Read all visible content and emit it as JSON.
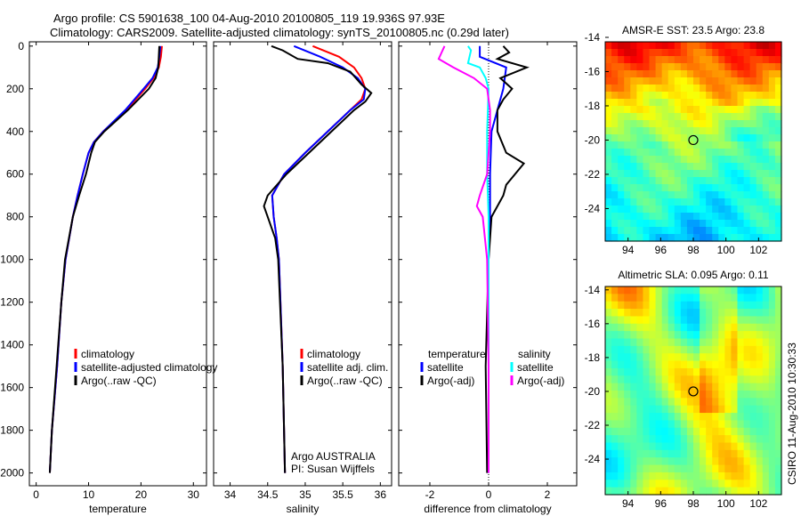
{
  "title": {
    "line1": "Argo profile: CS 5901638_100 04-Aug-2010 20100805_119 19.936S 97.93E",
    "line2": "Climatology: CARS2009. Satellite-adjusted climatology: synTS_20100805.nc (0.29d later)"
  },
  "side_label": "CSIRO 11-Aug-2010 10:30:33",
  "chart_data": [
    {
      "type": "line",
      "xlabel": "temperature",
      "ylabel": "",
      "xlim": [
        -1.3,
        32.5
      ],
      "ylim": [
        -20,
        2060
      ],
      "y_reversed": true,
      "xticks": [
        0,
        10,
        20,
        30
      ],
      "yticks": [
        0,
        200,
        400,
        600,
        800,
        1000,
        1200,
        1400,
        1600,
        1800,
        2000
      ],
      "legend": [
        "climatology",
        "satellite-adjusted climatology",
        "Argo(..raw -QC)"
      ],
      "series": [
        {
          "name": "climatology",
          "color": "#ff0000",
          "depth": [
            0,
            50,
            100,
            150,
            200,
            300,
            400,
            450,
            500,
            600,
            700,
            800,
            1000,
            1200,
            1500,
            1800,
            2000
          ],
          "values": [
            24,
            23.8,
            23.4,
            22.4,
            20.8,
            17.2,
            12.8,
            11,
            10,
            8.9,
            7.9,
            7,
            5.6,
            4.8,
            4,
            3,
            2.6
          ]
        },
        {
          "name": "satellite-adjusted climatology",
          "color": "#0000ff",
          "depth": [
            0,
            50,
            100,
            150,
            200,
            300,
            400,
            450,
            500,
            600,
            700,
            800,
            1000,
            1200,
            1500,
            1800,
            2000
          ],
          "values": [
            23.7,
            23.5,
            23.2,
            22.2,
            20.5,
            17,
            12.8,
            11,
            10,
            8.9,
            7.9,
            7,
            5.6,
            4.8,
            4,
            3,
            2.6
          ]
        },
        {
          "name": "Argo(..raw -QC)",
          "color": "#000000",
          "depth": [
            0,
            50,
            100,
            150,
            200,
            300,
            400,
            450,
            500,
            600,
            700,
            800,
            1000,
            1200,
            1500,
            1800,
            2000
          ],
          "values": [
            23.5,
            23.4,
            23.3,
            22.8,
            21.5,
            17.5,
            13,
            11.2,
            10.5,
            9.5,
            8.2,
            7,
            5.5,
            4.8,
            3.9,
            3,
            2.6
          ]
        }
      ]
    },
    {
      "type": "line",
      "xlabel": "salinity",
      "ylabel": "",
      "xlim": [
        33.78,
        36.15
      ],
      "ylim": [
        -20,
        2060
      ],
      "y_reversed": true,
      "xticks": [
        34,
        34.5,
        35,
        35.5,
        36
      ],
      "legend": [
        "climatology",
        "satellite adj. clim.",
        "Argo(..raw -QC)"
      ],
      "annotation": [
        "Argo AUSTRALIA",
        "PI: Susan Wijffels"
      ],
      "series": [
        {
          "name": "climatology",
          "color": "#ff0000",
          "depth": [
            0,
            50,
            100,
            150,
            200,
            250,
            300,
            400,
            500,
            600,
            700,
            800,
            900,
            1000,
            1500,
            2000
          ],
          "values": [
            35.1,
            35.45,
            35.65,
            35.75,
            35.8,
            35.75,
            35.6,
            35.3,
            35.0,
            34.72,
            34.56,
            34.58,
            34.62,
            34.65,
            34.7,
            34.73
          ]
        },
        {
          "name": "satellite adj. clim.",
          "color": "#0000ff",
          "depth": [
            0,
            50,
            100,
            150,
            200,
            250,
            300,
            400,
            500,
            600,
            700,
            800,
            900,
            1000,
            1500,
            2000
          ],
          "values": [
            34.85,
            35.2,
            35.5,
            35.7,
            35.8,
            35.78,
            35.6,
            35.3,
            35.0,
            34.72,
            34.56,
            34.58,
            34.62,
            34.65,
            34.7,
            34.73
          ]
        },
        {
          "name": "Argo(..raw -QC)",
          "color": "#000000",
          "depth": [
            0,
            20,
            60,
            80,
            120,
            180,
            220,
            260,
            300,
            400,
            500,
            600,
            700,
            750,
            800,
            900,
            1000,
            1500,
            2000
          ],
          "values": [
            34.55,
            34.7,
            34.9,
            35.3,
            35.6,
            35.75,
            35.88,
            35.8,
            35.65,
            35.35,
            35.05,
            34.75,
            34.5,
            34.45,
            34.5,
            34.6,
            34.64,
            34.7,
            34.73
          ]
        }
      ]
    },
    {
      "type": "line",
      "xlabel": "difference from climatology",
      "ylabel": "",
      "xlim": [
        -3.06,
        3.0
      ],
      "ylim": [
        -20,
        2060
      ],
      "y_reversed": true,
      "xticks": [
        -2,
        0,
        2
      ],
      "legend": {
        "temperature_header": "temperature",
        "salinity_header": "salinity",
        "items": [
          "satellite",
          "Argo(-adj)",
          "satellite",
          "Argo(-adj)"
        ]
      },
      "series": [
        {
          "name": "temperature satellite",
          "color": "#0000ff",
          "depth": [
            0,
            50,
            100,
            200,
            300,
            400,
            600,
            800,
            1000,
            1500,
            2000
          ],
          "values": [
            -0.3,
            -0.3,
            0.6,
            0.5,
            0.3,
            0.1,
            0.05,
            0.05,
            0,
            0,
            0
          ]
        },
        {
          "name": "temperature Argo(-adj)",
          "color": "#000000",
          "depth": [
            0,
            30,
            60,
            100,
            150,
            200,
            250,
            300,
            400,
            500,
            550,
            600,
            650,
            700,
            750,
            800,
            1000,
            1500,
            2000
          ],
          "values": [
            0.5,
            0.7,
            0.3,
            1.3,
            0.4,
            0.8,
            0.5,
            0.3,
            0.3,
            0.6,
            1.2,
            0.9,
            0.6,
            0.5,
            0.3,
            0.1,
            0,
            -0.1,
            -0.05
          ]
        },
        {
          "name": "salinity satellite",
          "color": "#00ffff",
          "depth": [
            0,
            20,
            80,
            100,
            150,
            200,
            400,
            600,
            800,
            1000,
            2000
          ],
          "values": [
            -0.7,
            -0.6,
            -0.7,
            -0.3,
            -0.1,
            0,
            -0.05,
            -0.05,
            0,
            0,
            0
          ]
        },
        {
          "name": "salinity Argo(-adj)",
          "color": "#ff00ff",
          "depth": [
            0,
            30,
            60,
            100,
            150,
            200,
            250,
            300,
            400,
            500,
            600,
            700,
            750,
            800,
            1000,
            1500,
            2000
          ],
          "values": [
            -1.5,
            -1.6,
            -1.7,
            -1.2,
            -0.5,
            -0.05,
            0,
            0.05,
            0.05,
            0,
            -0.05,
            -0.3,
            -0.4,
            -0.2,
            -0.05,
            0,
            0
          ]
        }
      ]
    },
    {
      "type": "heatmap",
      "title": "AMSR-E SST: 23.5 Argo: 23.8",
      "xlim": [
        92.6,
        103.4
      ],
      "ylim": [
        -14.26,
        -25.9
      ],
      "xticks": [
        94,
        96,
        98,
        100,
        102
      ],
      "yticks": [
        -14,
        -16,
        -18,
        -20,
        -22,
        -24
      ],
      "marker": [
        98,
        -20
      ]
    },
    {
      "type": "heatmap",
      "title": "Altimetric SLA: 0.095 Argo: 0.11",
      "xlim": [
        92.6,
        103.4
      ],
      "ylim": [
        -13.8,
        -26.1
      ],
      "xticks": [
        94,
        96,
        98,
        100,
        102
      ],
      "yticks": [
        -14,
        -16,
        -18,
        -20,
        -22,
        -24
      ],
      "marker": [
        98,
        -20
      ]
    }
  ]
}
